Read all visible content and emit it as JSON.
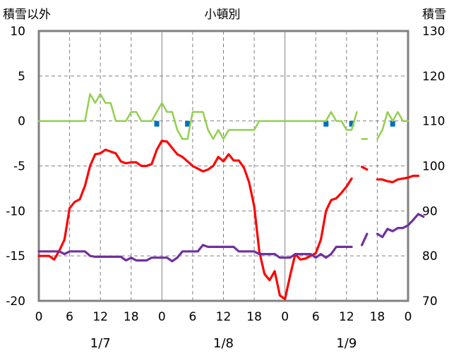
{
  "header": {
    "left_label": "積雪以外",
    "center_label": "小頓別",
    "right_label": "積雪"
  },
  "chart_data": {
    "type": "line",
    "x_unit": "hour",
    "x_range": [
      0,
      72
    ],
    "x_tick_labels": [
      "0",
      "6",
      "12",
      "18",
      "0",
      "6",
      "12",
      "18",
      "0",
      "6",
      "12",
      "18",
      "0"
    ],
    "date_labels": [
      "1/7",
      "1/8",
      "1/9"
    ],
    "y_left": {
      "ylim": [
        -20,
        10
      ],
      "ticks": [
        "10",
        "5",
        "0",
        "-5",
        "-10",
        "-15",
        "-20"
      ]
    },
    "y_right": {
      "ylim": [
        70,
        130
      ],
      "ticks": [
        "130",
        "120",
        "110",
        "100",
        "90",
        "80",
        "70"
      ]
    },
    "grid": true,
    "colors": {
      "green": "#92d050",
      "red": "#ff0000",
      "purple": "#7030a0",
      "blue": "#0070c0",
      "frame": "#808080"
    },
    "series": [
      {
        "key": "green",
        "axis": "left",
        "segments": [
          [
            [
              0,
              0
            ],
            [
              1,
              0
            ],
            [
              2,
              0
            ],
            [
              3,
              0
            ],
            [
              4,
              0
            ],
            [
              5,
              0
            ],
            [
              6,
              0
            ],
            [
              7,
              0
            ],
            [
              8,
              0
            ],
            [
              9,
              0
            ],
            [
              10,
              3
            ],
            [
              11,
              2
            ],
            [
              12,
              3
            ],
            [
              13,
              2
            ],
            [
              14,
              2
            ],
            [
              15,
              0
            ],
            [
              16,
              0
            ],
            [
              17,
              0
            ],
            [
              18,
              1
            ],
            [
              19,
              1
            ],
            [
              20,
              0
            ],
            [
              21,
              0
            ],
            [
              22,
              0
            ],
            [
              23,
              1
            ],
            [
              24,
              2
            ],
            [
              25,
              1
            ],
            [
              26,
              1
            ],
            [
              27,
              -1
            ],
            [
              28,
              -2
            ],
            [
              29,
              -2
            ],
            [
              30,
              1
            ],
            [
              31,
              1
            ],
            [
              32,
              1
            ],
            [
              33,
              -1
            ],
            [
              34,
              -2
            ],
            [
              35,
              -1
            ],
            [
              36,
              -2
            ],
            [
              37,
              -1
            ],
            [
              38,
              -1
            ],
            [
              39,
              -1
            ],
            [
              40,
              -1
            ],
            [
              41,
              -1
            ],
            [
              42,
              -1
            ],
            [
              43,
              0
            ],
            [
              44,
              0
            ],
            [
              45,
              0
            ],
            [
              46,
              0
            ],
            [
              47,
              0
            ],
            [
              48,
              0
            ],
            [
              49,
              0
            ],
            [
              50,
              0
            ],
            [
              51,
              0
            ],
            [
              52,
              0
            ],
            [
              53,
              0
            ],
            [
              54,
              0
            ],
            [
              55,
              0
            ],
            [
              56,
              0
            ],
            [
              57,
              1
            ],
            [
              58,
              0
            ],
            [
              59,
              0
            ],
            [
              60,
              -1
            ],
            [
              61,
              -1
            ],
            [
              62,
              1
            ]
          ],
          [
            [
              63,
              -2
            ],
            [
              64,
              -2
            ]
          ],
          [
            [
              66,
              -2
            ],
            [
              67,
              -1
            ],
            [
              68,
              1
            ],
            [
              69,
              0
            ],
            [
              70,
              1
            ],
            [
              71,
              0
            ],
            [
              72,
              0
            ]
          ]
        ]
      },
      {
        "key": "red",
        "axis": "left",
        "segments": [
          [
            [
              0,
              -15
            ],
            [
              1,
              -15
            ],
            [
              2,
              -15
            ],
            [
              3,
              -15.4
            ],
            [
              4,
              -14.4
            ],
            [
              5,
              -13.2
            ],
            [
              6,
              -9.7
            ],
            [
              7,
              -9
            ],
            [
              8,
              -8.7
            ],
            [
              9,
              -7.2
            ],
            [
              10,
              -5
            ],
            [
              11,
              -3.7
            ],
            [
              12,
              -3.6
            ],
            [
              13,
              -3.2
            ],
            [
              14,
              -3.4
            ],
            [
              15,
              -3.6
            ],
            [
              16,
              -4.5
            ],
            [
              17,
              -4.7
            ],
            [
              18,
              -4.6
            ],
            [
              19,
              -4.6
            ],
            [
              20,
              -5
            ],
            [
              21,
              -5
            ],
            [
              22,
              -4.8
            ],
            [
              23,
              -3.2
            ],
            [
              24,
              -2.2
            ],
            [
              25,
              -2.3
            ],
            [
              26,
              -3
            ],
            [
              27,
              -3.7
            ],
            [
              28,
              -4
            ],
            [
              29,
              -4.5
            ],
            [
              30,
              -5
            ],
            [
              31,
              -5.3
            ],
            [
              32,
              -5.6
            ],
            [
              33,
              -5.4
            ],
            [
              34,
              -5
            ],
            [
              35,
              -4
            ],
            [
              36,
              -4.5
            ],
            [
              37,
              -3.7
            ],
            [
              38,
              -4.4
            ],
            [
              39,
              -4.4
            ],
            [
              40,
              -5.2
            ],
            [
              41,
              -6.8
            ],
            [
              42,
              -9.5
            ],
            [
              43,
              -14.5
            ],
            [
              44,
              -17
            ],
            [
              45,
              -17.7
            ],
            [
              46,
              -16.7
            ],
            [
              47,
              -19.4
            ],
            [
              48,
              -19.8
            ],
            [
              49,
              -17.2
            ],
            [
              50,
              -14.8
            ],
            [
              51,
              -15.4
            ],
            [
              52,
              -15.3
            ],
            [
              53,
              -15
            ],
            [
              54,
              -14.7
            ],
            [
              55,
              -13.2
            ],
            [
              56,
              -10
            ],
            [
              57,
              -8.8
            ],
            [
              58,
              -8.6
            ],
            [
              59,
              -8
            ],
            [
              60,
              -7.3
            ],
            [
              61,
              -6.4
            ]
          ],
          [
            [
              63,
              -5.1
            ],
            [
              64,
              -5.4
            ]
          ],
          [
            [
              66,
              -6.5
            ],
            [
              67,
              -6.5
            ],
            [
              68,
              -6.7
            ],
            [
              69,
              -6.8
            ],
            [
              70,
              -6.5
            ],
            [
              71,
              -6.4
            ],
            [
              72,
              -6.3
            ],
            [
              73,
              -6.1
            ],
            [
              74,
              -6.1
            ]
          ]
        ]
      },
      {
        "key": "purple",
        "axis": "right",
        "segments": [
          [
            [
              0,
              81
            ],
            [
              1,
              81
            ],
            [
              2,
              81
            ],
            [
              3,
              81
            ],
            [
              4,
              81
            ],
            [
              5,
              80.4
            ],
            [
              6,
              81
            ],
            [
              7,
              81
            ],
            [
              8,
              81
            ],
            [
              9,
              81
            ],
            [
              10,
              80
            ],
            [
              11,
              79.8
            ],
            [
              12,
              79.8
            ],
            [
              13,
              79.8
            ],
            [
              14,
              79.8
            ],
            [
              15,
              79.8
            ],
            [
              16,
              79.8
            ],
            [
              17,
              79
            ],
            [
              18,
              79.6
            ],
            [
              19,
              79
            ],
            [
              20,
              79
            ],
            [
              21,
              79
            ],
            [
              22,
              79.6
            ],
            [
              23,
              79.6
            ],
            [
              24,
              79.6
            ],
            [
              25,
              79.6
            ],
            [
              26,
              78.8
            ],
            [
              27,
              79.6
            ],
            [
              28,
              81
            ],
            [
              29,
              81
            ],
            [
              30,
              81
            ],
            [
              31,
              81
            ],
            [
              32,
              82.4
            ],
            [
              33,
              82
            ],
            [
              34,
              82
            ],
            [
              35,
              82
            ],
            [
              36,
              82
            ],
            [
              37,
              82
            ],
            [
              38,
              82
            ],
            [
              39,
              81
            ],
            [
              40,
              81
            ],
            [
              41,
              81
            ],
            [
              42,
              81
            ],
            [
              43,
              80.4
            ],
            [
              44,
              80.4
            ],
            [
              45,
              80.4
            ],
            [
              46,
              80.4
            ],
            [
              47,
              79.6
            ],
            [
              48,
              79.6
            ],
            [
              49,
              79.6
            ],
            [
              50,
              80.4
            ],
            [
              51,
              80.4
            ],
            [
              52,
              80.4
            ],
            [
              53,
              80.4
            ],
            [
              54,
              79.6
            ],
            [
              55,
              80.4
            ],
            [
              56,
              79.6
            ],
            [
              57,
              80.4
            ],
            [
              58,
              82
            ],
            [
              59,
              82
            ],
            [
              60,
              82
            ],
            [
              61,
              82
            ]
          ],
          [
            [
              63,
              82.4
            ],
            [
              64,
              84.9
            ]
          ],
          [
            [
              66,
              84.9
            ],
            [
              67,
              84.2
            ],
            [
              68,
              86
            ],
            [
              69,
              85.5
            ],
            [
              70,
              86.2
            ],
            [
              71,
              86.2
            ],
            [
              72,
              86.8
            ],
            [
              73,
              88
            ],
            [
              74,
              89.3
            ],
            [
              75,
              88.7
            ]
          ]
        ]
      }
    ],
    "bars": {
      "key": "blue",
      "axis": "left",
      "points": [
        [
          23,
          -0.5
        ],
        [
          29,
          -0.5
        ],
        [
          56,
          -0.5
        ],
        [
          61,
          -0.5
        ],
        [
          69,
          -0.5
        ]
      ]
    }
  }
}
